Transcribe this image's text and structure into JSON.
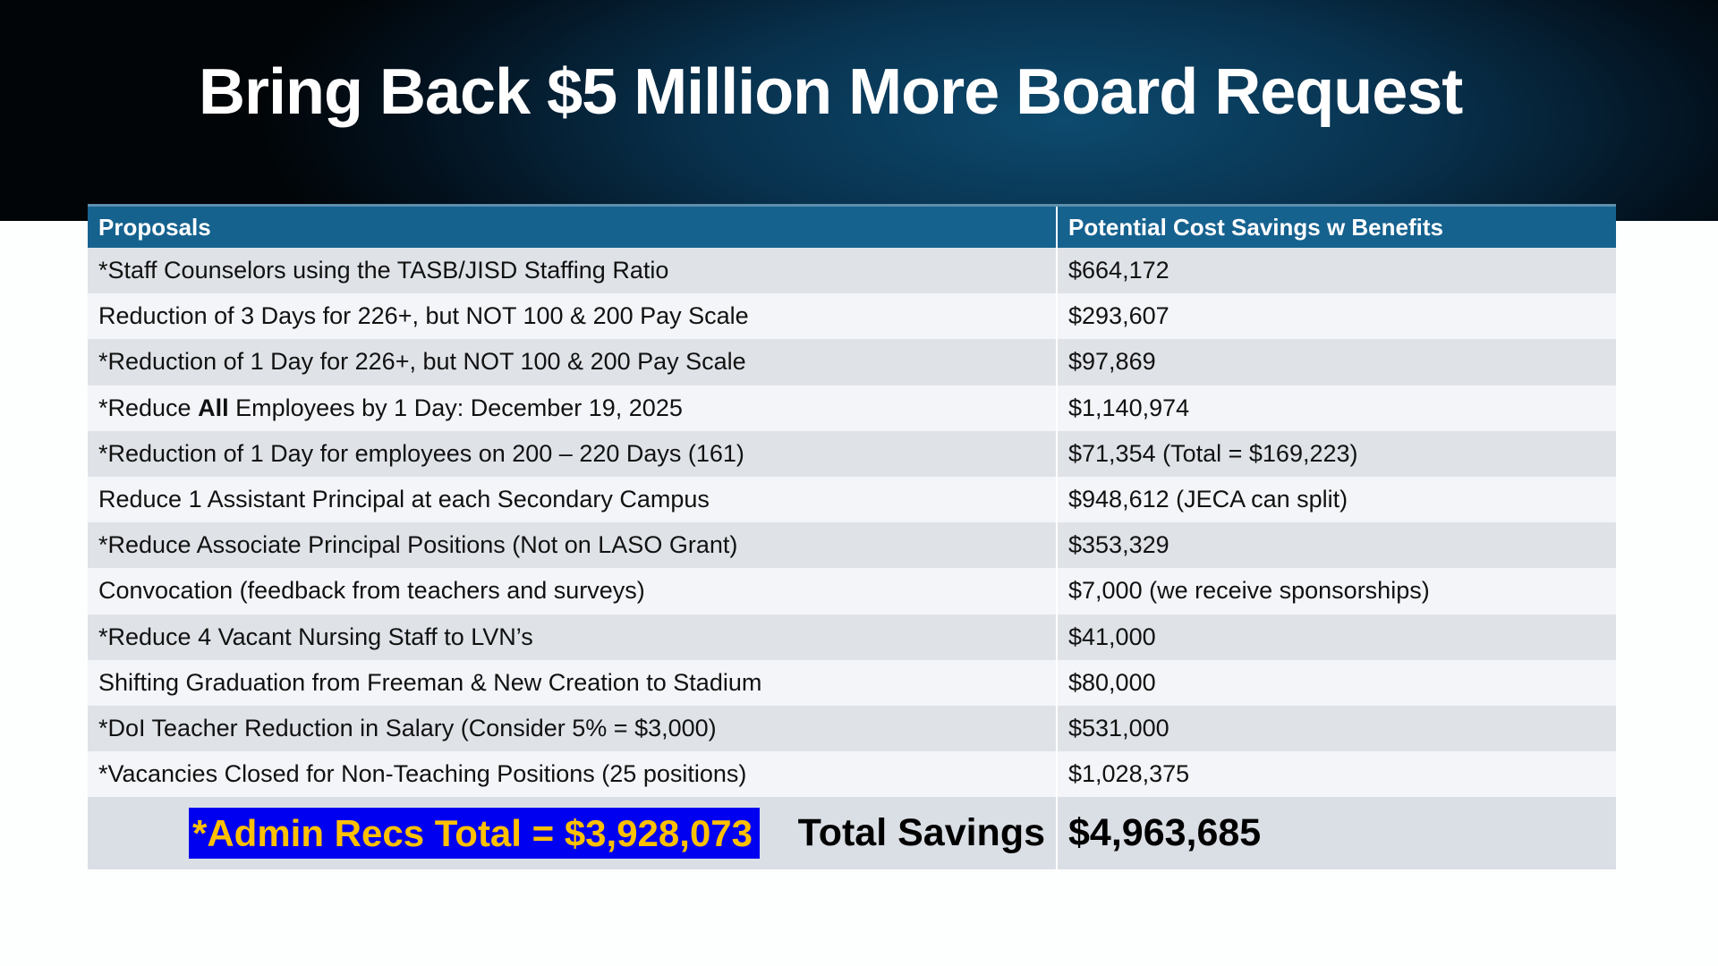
{
  "title": "Bring Back $5 Million More Board Request",
  "table": {
    "headers": [
      "Proposals",
      "Potential Cost Savings w Benefits"
    ],
    "rows": [
      {
        "pre": "*Staff Counselors using the TASB/JISD Staffing Ratio",
        "bold": "",
        "post": "",
        "value": "$664,172"
      },
      {
        "pre": "Reduction of 3 Days for 226+, but NOT 100 & 200 Pay Scale",
        "bold": "",
        "post": "",
        "value": "$293,607"
      },
      {
        "pre": "*Reduction of 1 Day for 226+, but NOT 100 & 200 Pay Scale",
        "bold": "",
        "post": "",
        "value": "$97,869"
      },
      {
        "pre": "*Reduce ",
        "bold": "All",
        "post": " Employees by 1 Day: December 19, 2025",
        "value": "$1,140,974"
      },
      {
        "pre": "*Reduction of 1 Day for employees on 200 – 220 Days (161)",
        "bold": "",
        "post": "",
        "value": "$71,354 (Total = $169,223)"
      },
      {
        "pre": "Reduce 1 Assistant Principal at each Secondary Campus",
        "bold": "",
        "post": "",
        "value": "$948,612 (JECA can split)"
      },
      {
        "pre": "*Reduce Associate Principal Positions (Not on LASO Grant)",
        "bold": "",
        "post": "",
        "value": "$353,329"
      },
      {
        "pre": "Convocation (feedback from teachers and surveys)",
        "bold": "",
        "post": "",
        "value": "$7,000 (we receive sponsorships)"
      },
      {
        "pre": "*Reduce 4 Vacant Nursing Staff to LVN’s",
        "bold": "",
        "post": "",
        "value": "$41,000"
      },
      {
        "pre": "Shifting Graduation from Freeman & New Creation to Stadium",
        "bold": "",
        "post": "",
        "value": "$80,000"
      },
      {
        "pre": "*DoI Teacher Reduction in Salary (Consider 5% = $3,000)",
        "bold": "",
        "post": "",
        "value": "$531,000"
      },
      {
        "pre": "*Vacancies Closed for Non-Teaching Positions (25 positions)",
        "bold": "",
        "post": "",
        "value": "$1,028,375"
      }
    ],
    "admin_total": "*Admin Recs Total = $3,928,073",
    "total_label": "Total Savings",
    "total_value": "$4,963,685"
  },
  "colors": {
    "header": "#16628f",
    "admin_bg": "#0000f0",
    "admin_text": "#ffc000"
  }
}
